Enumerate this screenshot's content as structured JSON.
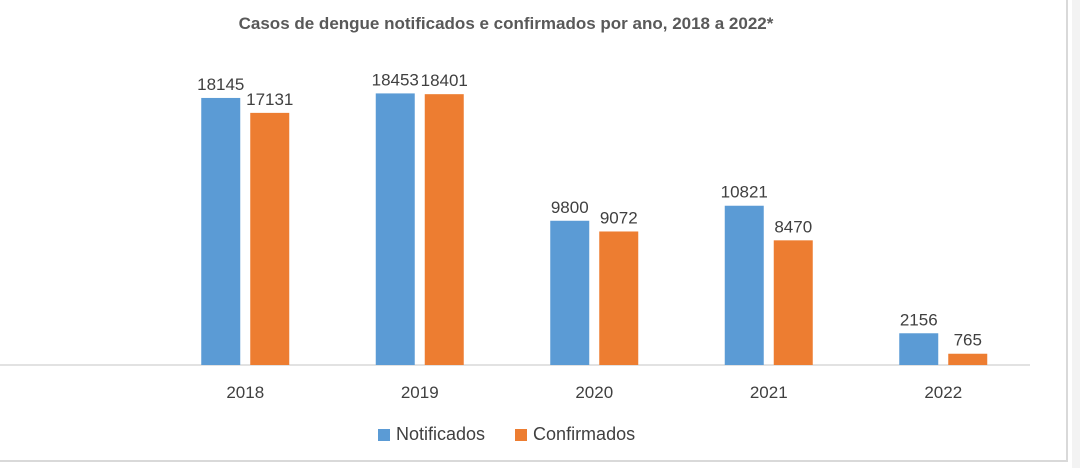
{
  "colors": {
    "notificados": "#5b9bd5",
    "confirmados": "#ed7d31"
  },
  "chart_data": {
    "type": "bar",
    "title": "Casos de dengue notificados e confirmados por ano, 2018 a 2022*",
    "xlabel": "",
    "ylabel": "",
    "categories": [
      "2018",
      "2019",
      "2020",
      "2021",
      "2022"
    ],
    "series": [
      {
        "name": "Notificados",
        "values": [
          18145,
          18453,
          9800,
          10821,
          2156
        ]
      },
      {
        "name": "Confirmados",
        "values": [
          17131,
          18401,
          9072,
          8470,
          765
        ]
      }
    ],
    "ylim": [
      0,
      19500
    ],
    "grid": false,
    "legend_position": "bottom"
  }
}
